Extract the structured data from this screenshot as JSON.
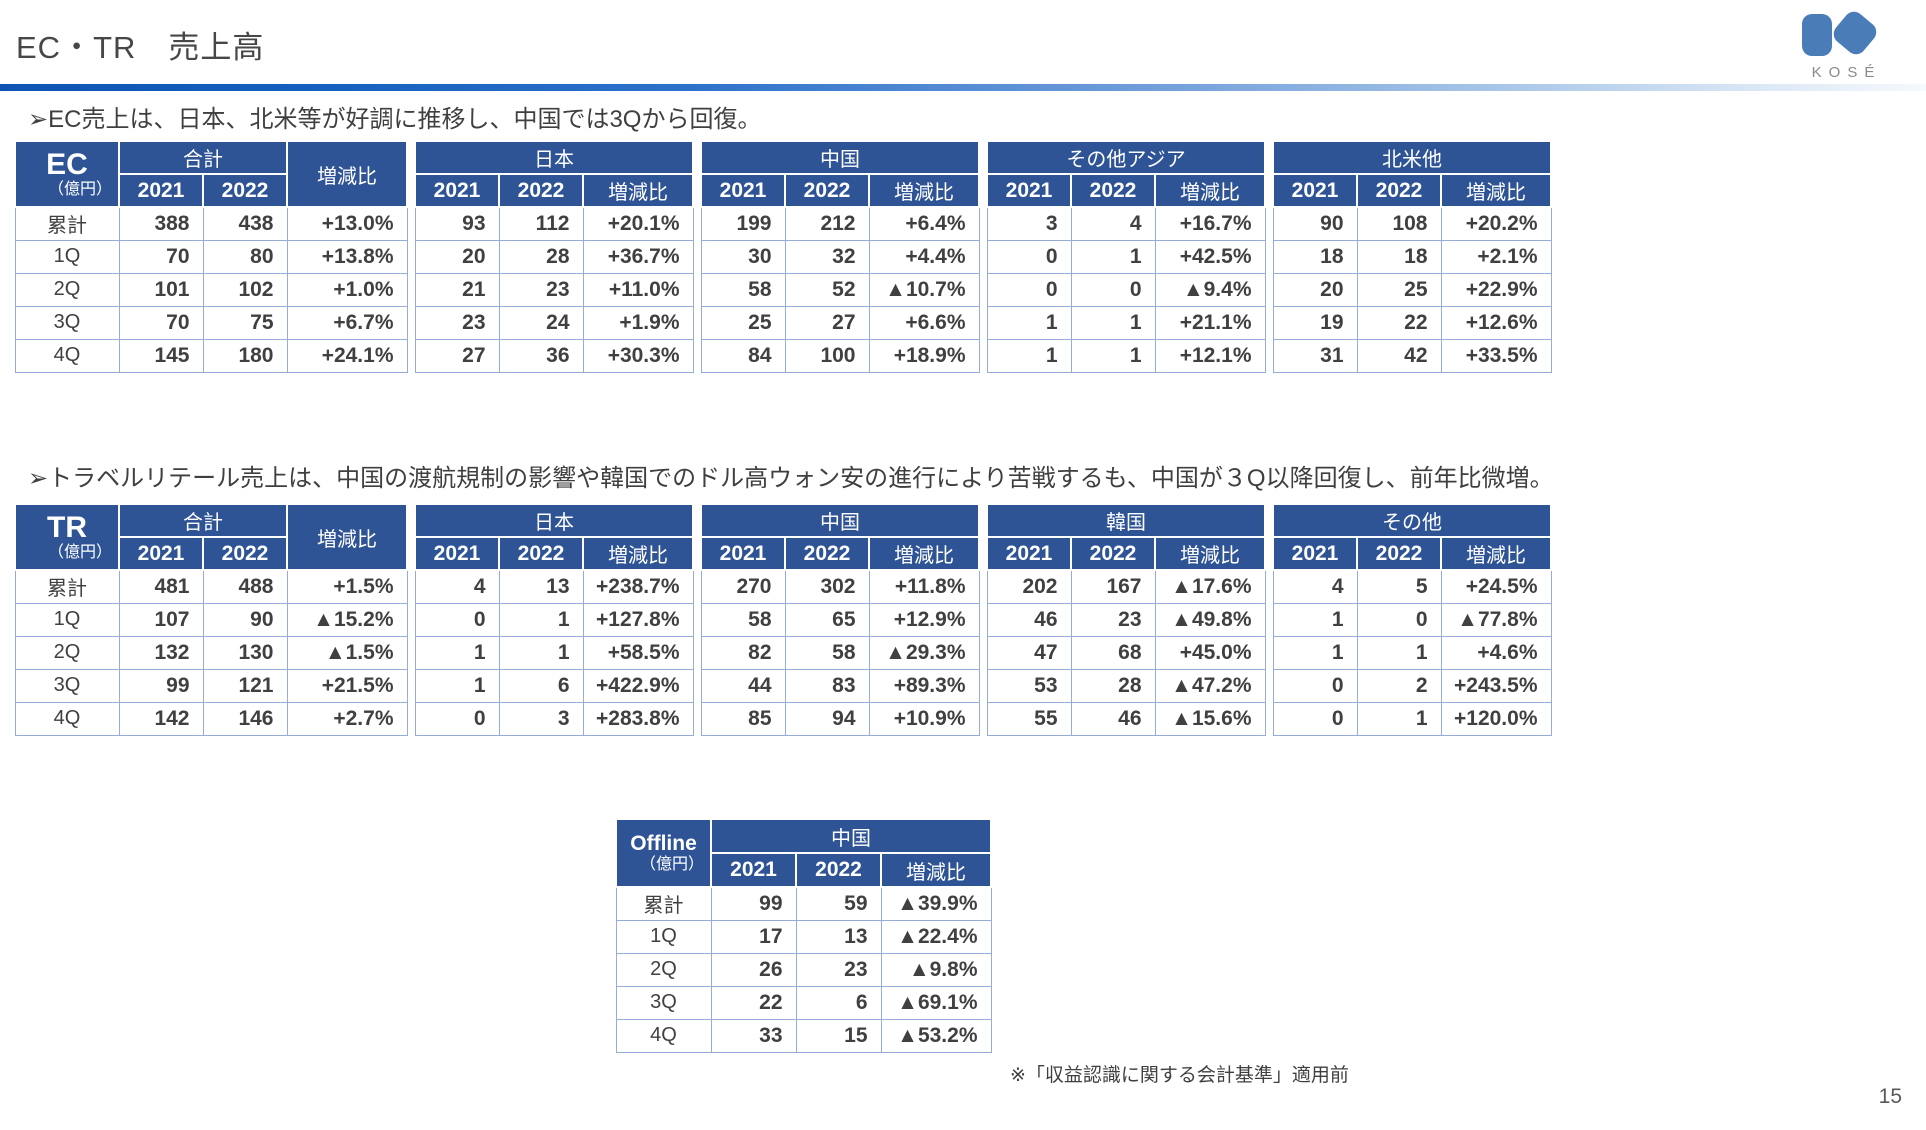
{
  "page": {
    "title": "EC・TR　売上高",
    "page_number": "15",
    "footnote": "※「収益認識に関する会計基準」適用前"
  },
  "logo": {
    "text": "KOSÉ"
  },
  "bullets": {
    "ec": "➢EC売上は、日本、北米等が好調に推移し、中国では3Qから回復。",
    "tr": "➢トラベルリテール売上は、中国の渡航規制の影響や韓国でのドル高ウォン安の進行により苦戦するも、中国が３Q以降回復し、前年比微増。"
  },
  "labels": {
    "total": "合計",
    "change": "増減比",
    "y2021": "2021",
    "y2022": "2022"
  },
  "colors": {
    "header_blue": "#2f5496",
    "grid_blue": "#95acd9",
    "text_gray": "#404040",
    "logo_blue": "#4a7cb8"
  },
  "tables": [
    {
      "id": "ec",
      "kind": "multi",
      "mount": "ec-table",
      "label": "EC",
      "unit": "（億円）",
      "row_labels": [
        "累計",
        "1Q",
        "2Q",
        "3Q",
        "4Q"
      ],
      "groups": [
        {
          "title": "合計",
          "rows": [
            [
              "388",
              "438",
              "+13.0%"
            ],
            [
              "70",
              "80",
              "+13.8%"
            ],
            [
              "101",
              "102",
              "+1.0%"
            ],
            [
              "70",
              "75",
              "+6.7%"
            ],
            [
              "145",
              "180",
              "+24.1%"
            ]
          ]
        },
        {
          "title": "日本",
          "rows": [
            [
              "93",
              "112",
              "+20.1%"
            ],
            [
              "20",
              "28",
              "+36.7%"
            ],
            [
              "21",
              "23",
              "+11.0%"
            ],
            [
              "23",
              "24",
              "+1.9%"
            ],
            [
              "27",
              "36",
              "+30.3%"
            ]
          ]
        },
        {
          "title": "中国",
          "rows": [
            [
              "199",
              "212",
              "+6.4%"
            ],
            [
              "30",
              "32",
              "+4.4%"
            ],
            [
              "58",
              "52",
              "▲10.7%"
            ],
            [
              "25",
              "27",
              "+6.6%"
            ],
            [
              "84",
              "100",
              "+18.9%"
            ]
          ]
        },
        {
          "title": "その他アジア",
          "rows": [
            [
              "3",
              "4",
              "+16.7%"
            ],
            [
              "0",
              "1",
              "+42.5%"
            ],
            [
              "0",
              "0",
              "▲9.4%"
            ],
            [
              "1",
              "1",
              "+21.1%"
            ],
            [
              "1",
              "1",
              "+12.1%"
            ]
          ]
        },
        {
          "title": "北米他",
          "rows": [
            [
              "90",
              "108",
              "+20.2%"
            ],
            [
              "18",
              "18",
              "+2.1%"
            ],
            [
              "20",
              "25",
              "+22.9%"
            ],
            [
              "19",
              "22",
              "+12.6%"
            ],
            [
              "31",
              "42",
              "+33.5%"
            ]
          ]
        }
      ]
    },
    {
      "id": "tr",
      "kind": "multi",
      "mount": "tr-table",
      "label": "TR",
      "unit": "（億円）",
      "row_labels": [
        "累計",
        "1Q",
        "2Q",
        "3Q",
        "4Q"
      ],
      "groups": [
        {
          "title": "合計",
          "rows": [
            [
              "481",
              "488",
              "+1.5%"
            ],
            [
              "107",
              "90",
              "▲15.2%"
            ],
            [
              "132",
              "130",
              "▲1.5%"
            ],
            [
              "99",
              "121",
              "+21.5%"
            ],
            [
              "142",
              "146",
              "+2.7%"
            ]
          ]
        },
        {
          "title": "日本",
          "rows": [
            [
              "4",
              "13",
              "+238.7%"
            ],
            [
              "0",
              "1",
              "+127.8%"
            ],
            [
              "1",
              "1",
              "+58.5%"
            ],
            [
              "1",
              "6",
              "+422.9%"
            ],
            [
              "0",
              "3",
              "+283.8%"
            ]
          ]
        },
        {
          "title": "中国",
          "rows": [
            [
              "270",
              "302",
              "+11.8%"
            ],
            [
              "58",
              "65",
              "+12.9%"
            ],
            [
              "82",
              "58",
              "▲29.3%"
            ],
            [
              "44",
              "83",
              "+89.3%"
            ],
            [
              "85",
              "94",
              "+10.9%"
            ]
          ]
        },
        {
          "title": "韓国",
          "rows": [
            [
              "202",
              "167",
              "▲17.6%"
            ],
            [
              "46",
              "23",
              "▲49.8%"
            ],
            [
              "47",
              "68",
              "+45.0%"
            ],
            [
              "53",
              "28",
              "▲47.2%"
            ],
            [
              "55",
              "46",
              "▲15.6%"
            ]
          ]
        },
        {
          "title": "その他",
          "rows": [
            [
              "4",
              "5",
              "+24.5%"
            ],
            [
              "1",
              "0",
              "▲77.8%"
            ],
            [
              "1",
              "1",
              "+4.6%"
            ],
            [
              "0",
              "2",
              "+243.5%"
            ],
            [
              "0",
              "1",
              "+120.0%"
            ]
          ]
        }
      ]
    },
    {
      "id": "offline",
      "kind": "single",
      "mount": "offline-table",
      "label": "Offline",
      "unit": "（億円）",
      "row_labels": [
        "累計",
        "1Q",
        "2Q",
        "3Q",
        "4Q"
      ],
      "groups": [
        {
          "title": "中国",
          "rows": [
            [
              "99",
              "59",
              "▲39.9%"
            ],
            [
              "17",
              "13",
              "▲22.4%"
            ],
            [
              "26",
              "23",
              "▲9.8%"
            ],
            [
              "22",
              "6",
              "▲69.1%"
            ],
            [
              "33",
              "15",
              "▲53.2%"
            ]
          ]
        }
      ]
    }
  ]
}
